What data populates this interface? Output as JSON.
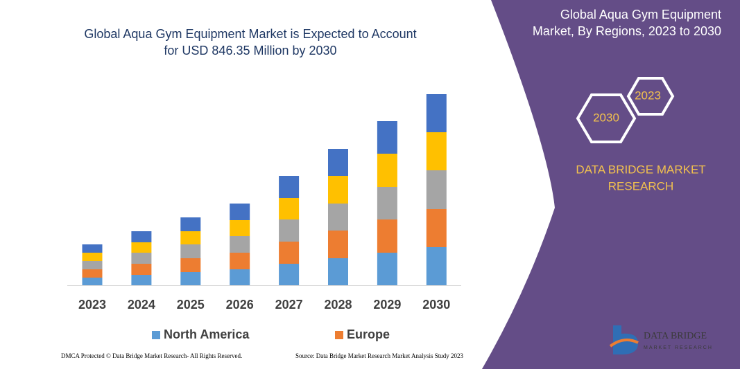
{
  "chart_data": {
    "type": "stacked-bar",
    "title": [
      "Global Aqua Gym Equipment Market is Expected to Account",
      "for USD 846.35 Million by 2030"
    ],
    "categories": [
      "2023",
      "2024",
      "2025",
      "2026",
      "2027",
      "2028",
      "2029",
      "2030"
    ],
    "series": [
      {
        "name": "North America",
        "color": "#5b9bd5",
        "values": [
          11,
          15,
          19,
          23,
          31,
          39,
          47,
          55
        ]
      },
      {
        "name": "Europe",
        "color": "#ed7d31",
        "values": [
          12,
          16,
          20,
          24,
          32,
          40,
          48,
          55
        ]
      },
      {
        "color": "#a5a5a5",
        "values": [
          12,
          16,
          20,
          24,
          32,
          39,
          47,
          56
        ]
      },
      {
        "color": "#ffc000",
        "values": [
          12,
          15,
          19,
          23,
          31,
          40,
          48,
          55
        ]
      },
      {
        "color": "#4472c4",
        "values": [
          12,
          16,
          20,
          24,
          32,
          39,
          47,
          55
        ]
      }
    ],
    "ylim": [
      0,
      280
    ]
  },
  "panel": {
    "heading": [
      "Global Aqua Gym Equipment",
      "Market, By Regions, 2023 to 2030"
    ],
    "badges": [
      "2023",
      "2030"
    ],
    "brand": [
      "DATA BRIDGE MARKET",
      "RESEARCH"
    ],
    "logo": [
      "DATA BRIDGE",
      "MARKET RESEARCH"
    ]
  },
  "footer": {
    "left": "DMCA Protected © Data Bridge Market Research- All Rights Reserved.",
    "right": "Source: Data Bridge Market Research Market Analysis Study 2023"
  }
}
